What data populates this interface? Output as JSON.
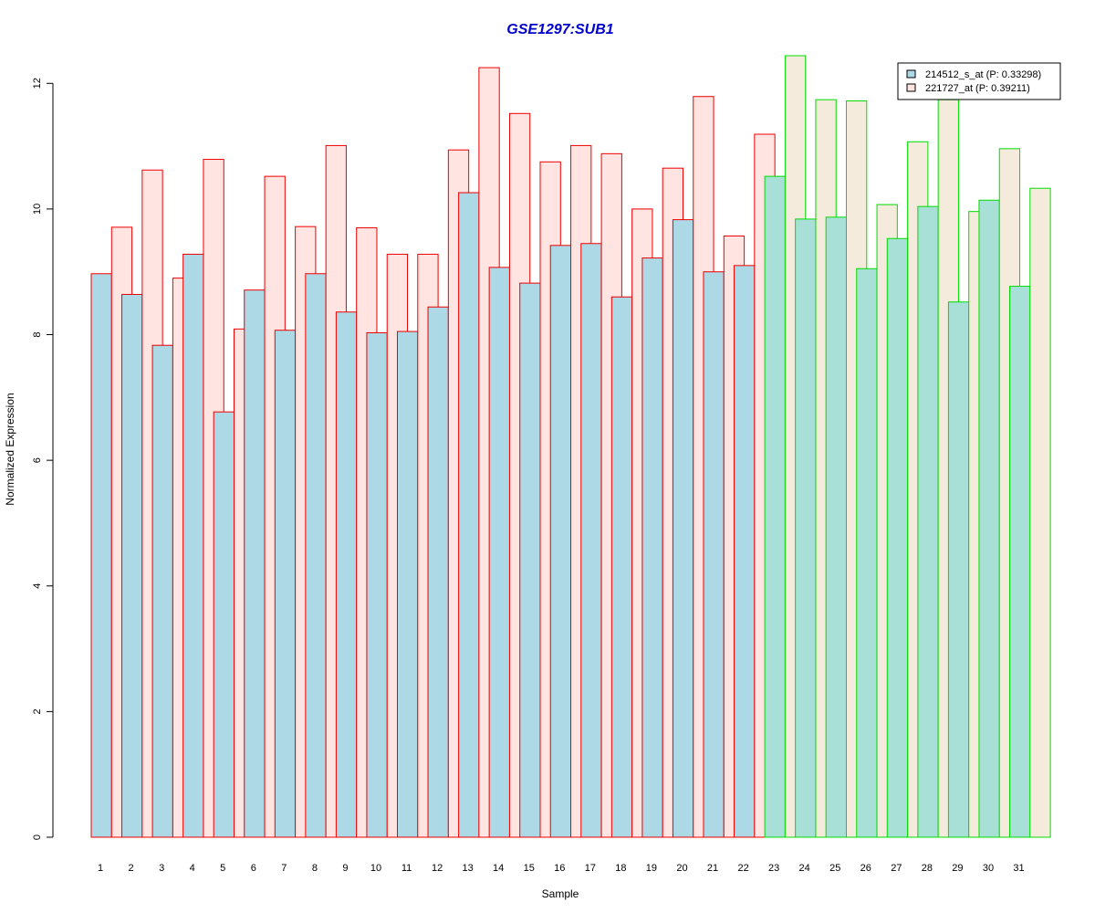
{
  "chart_data": {
    "type": "bar",
    "title": "GSE1297:SUB1",
    "xlabel": "Sample",
    "ylabel": "Normalized Expression",
    "ylim": [
      0,
      12.6
    ],
    "yticks": [
      0,
      2,
      4,
      6,
      8,
      10,
      12
    ],
    "grid": false,
    "legend_position": "top-right",
    "categories": [
      "1",
      "2",
      "3",
      "4",
      "5",
      "6",
      "7",
      "8",
      "9",
      "10",
      "11",
      "12",
      "13",
      "14",
      "15",
      "16",
      "17",
      "18",
      "19",
      "20",
      "21",
      "22",
      "23",
      "24",
      "25",
      "26",
      "27",
      "28",
      "29",
      "30",
      "31"
    ],
    "series": [
      {
        "name": "214512_s_at (P: 0.33298)",
        "values": [
          8.97,
          8.64,
          7.83,
          9.28,
          6.77,
          8.71,
          8.07,
          8.97,
          8.36,
          8.03,
          8.05,
          8.44,
          10.26,
          9.07,
          8.82,
          9.42,
          9.45,
          8.6,
          9.22,
          9.83,
          9.0,
          9.1,
          10.52,
          9.84,
          9.87,
          9.05,
          9.53,
          10.04,
          8.52,
          10.14,
          8.77
        ],
        "fills": [
          "#add8e6",
          "#a8e0d8"
        ]
      },
      {
        "name": "221727_at (P: 0.39211)",
        "values": [
          9.71,
          10.62,
          8.9,
          10.79,
          8.09,
          10.52,
          9.72,
          11.01,
          9.7,
          9.28,
          9.28,
          10.94,
          12.25,
          11.52,
          10.75,
          11.01,
          10.88,
          10.0,
          10.65,
          11.79,
          9.57,
          11.19,
          12.44,
          11.74,
          11.72,
          10.07,
          11.07,
          11.74,
          9.96,
          10.96,
          10.33
        ],
        "fills": [
          "#ffe4e1",
          "#f5ebdc"
        ]
      }
    ],
    "group_borders": [
      "#ee0000",
      "#00dd00"
    ],
    "group_counts": [
      22,
      9
    ],
    "legend_fills": [
      "#add8e6",
      "#ffe4e1"
    ]
  }
}
